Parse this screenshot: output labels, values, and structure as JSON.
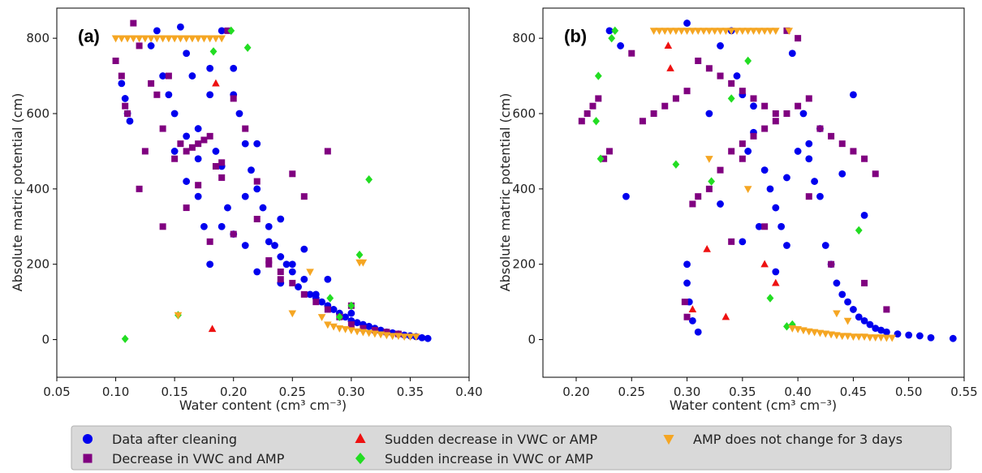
{
  "chart_data": [
    {
      "type": "scatter",
      "panel_label": "(a)",
      "xlabel": "Water content (cm³ cm⁻³)",
      "ylabel": "Absolute matric potential (cm)",
      "xlim": [
        0.05,
        0.4
      ],
      "ylim": [
        -100,
        880
      ],
      "xticks": [
        0.05,
        0.1,
        0.15,
        0.2,
        0.25,
        0.3,
        0.35,
        0.4
      ],
      "xtick_labels": [
        "0.05",
        "0.10",
        "0.15",
        "0.20",
        "0.25",
        "0.30",
        "0.35",
        "0.40"
      ],
      "yticks": [
        0,
        200,
        400,
        600,
        800
      ],
      "ytick_labels": [
        "0",
        "200",
        "400",
        "600",
        "800"
      ],
      "grid": false,
      "series": [
        {
          "name": "Data after cleaning",
          "marker": "circle",
          "color": "#0000ee",
          "x": [
            0.105,
            0.108,
            0.11,
            0.112,
            0.13,
            0.135,
            0.14,
            0.145,
            0.15,
            0.15,
            0.155,
            0.16,
            0.16,
            0.165,
            0.17,
            0.17,
            0.175,
            0.18,
            0.18,
            0.185,
            0.19,
            0.19,
            0.195,
            0.2,
            0.2,
            0.205,
            0.21,
            0.21,
            0.215,
            0.22,
            0.22,
            0.225,
            0.23,
            0.235,
            0.24,
            0.24,
            0.245,
            0.25,
            0.255,
            0.26,
            0.265,
            0.27,
            0.275,
            0.28,
            0.285,
            0.29,
            0.295,
            0.3,
            0.305,
            0.31,
            0.315,
            0.32,
            0.325,
            0.33,
            0.335,
            0.34,
            0.345,
            0.35,
            0.355,
            0.36,
            0.365,
            0.16,
            0.17,
            0.19,
            0.21,
            0.23,
            0.25,
            0.27,
            0.2,
            0.18,
            0.22,
            0.26,
            0.28,
            0.3,
            0.24
          ],
          "y": [
            680,
            640,
            600,
            580,
            780,
            820,
            700,
            650,
            600,
            500,
            830,
            760,
            420,
            700,
            380,
            560,
            300,
            650,
            200,
            500,
            820,
            460,
            350,
            720,
            280,
            600,
            520,
            250,
            450,
            400,
            180,
            350,
            300,
            250,
            220,
            150,
            200,
            180,
            140,
            160,
            120,
            110,
            100,
            90,
            80,
            70,
            60,
            50,
            45,
            40,
            35,
            30,
            25,
            20,
            18,
            15,
            12,
            10,
            8,
            5,
            3,
            540,
            480,
            300,
            380,
            260,
            200,
            120,
            650,
            720,
            520,
            240,
            160,
            70,
            320
          ]
        },
        {
          "name": "Decrease in VWC and AMP",
          "marker": "square",
          "color": "#800080",
          "x": [
            0.1,
            0.105,
            0.108,
            0.11,
            0.115,
            0.12,
            0.125,
            0.13,
            0.135,
            0.14,
            0.145,
            0.15,
            0.155,
            0.16,
            0.165,
            0.17,
            0.175,
            0.18,
            0.185,
            0.19,
            0.195,
            0.2,
            0.21,
            0.22,
            0.23,
            0.24,
            0.25,
            0.26,
            0.27,
            0.28,
            0.29,
            0.3,
            0.31,
            0.32,
            0.33,
            0.34,
            0.12,
            0.14,
            0.16,
            0.18,
            0.2,
            0.22,
            0.24,
            0.26,
            0.28,
            0.3,
            0.17,
            0.19,
            0.23,
            0.25
          ],
          "y": [
            740,
            700,
            620,
            600,
            840,
            780,
            500,
            680,
            650,
            560,
            700,
            480,
            520,
            500,
            510,
            520,
            530,
            540,
            460,
            430,
            820,
            640,
            560,
            420,
            200,
            180,
            150,
            120,
            100,
            80,
            60,
            40,
            30,
            25,
            20,
            15,
            400,
            300,
            350,
            260,
            280,
            320,
            160,
            380,
            500,
            90,
            410,
            470,
            210,
            440
          ]
        },
        {
          "name": "Sudden decrease in VWC or AMP",
          "marker": "triangle-up",
          "color": "#ee1111",
          "x": [
            0.182,
            0.185
          ],
          "y": [
            28,
            680
          ]
        },
        {
          "name": "Sudden increase in VWC or AMP",
          "marker": "diamond",
          "color": "#22dd22",
          "x": [
            0.108,
            0.153,
            0.183,
            0.198,
            0.212,
            0.307,
            0.315,
            0.282,
            0.29,
            0.3
          ],
          "y": [
            2,
            65,
            765,
            820,
            775,
            225,
            425,
            110,
            60,
            90
          ]
        },
        {
          "name": "AMP does not change for 3 days",
          "marker": "triangle-down",
          "color": "#f5a623",
          "x": [
            0.1,
            0.105,
            0.11,
            0.115,
            0.12,
            0.125,
            0.13,
            0.135,
            0.14,
            0.145,
            0.15,
            0.155,
            0.16,
            0.165,
            0.17,
            0.175,
            0.18,
            0.185,
            0.19,
            0.153,
            0.307,
            0.31,
            0.28,
            0.285,
            0.29,
            0.295,
            0.3,
            0.305,
            0.31,
            0.315,
            0.32,
            0.325,
            0.33,
            0.335,
            0.34,
            0.345,
            0.35,
            0.355,
            0.275,
            0.265,
            0.25
          ],
          "y": [
            800,
            800,
            800,
            800,
            800,
            800,
            800,
            800,
            800,
            800,
            800,
            800,
            800,
            800,
            800,
            800,
            800,
            800,
            800,
            65,
            205,
            205,
            40,
            35,
            30,
            28,
            25,
            22,
            20,
            18,
            16,
            14,
            12,
            10,
            10,
            8,
            8,
            8,
            60,
            180,
            70
          ]
        }
      ]
    },
    {
      "type": "scatter",
      "panel_label": "(b)",
      "xlabel": "Water content (cm³ cm⁻³)",
      "ylabel": "Absolute matric potential (cm)",
      "xlim": [
        0.17,
        0.55
      ],
      "ylim": [
        -100,
        880
      ],
      "xticks": [
        0.2,
        0.25,
        0.3,
        0.35,
        0.4,
        0.45,
        0.5,
        0.55
      ],
      "xtick_labels": [
        "0.20",
        "0.25",
        "0.30",
        "0.35",
        "0.40",
        "0.45",
        "0.50",
        "0.55"
      ],
      "yticks": [
        0,
        200,
        400,
        600,
        800
      ],
      "ytick_labels": [
        "0",
        "200",
        "400",
        "600",
        "800"
      ],
      "grid": false,
      "series": [
        {
          "name": "Data after cleaning",
          "marker": "circle",
          "color": "#0000ee",
          "x": [
            0.23,
            0.24,
            0.245,
            0.3,
            0.3,
            0.302,
            0.305,
            0.31,
            0.32,
            0.33,
            0.34,
            0.345,
            0.35,
            0.355,
            0.36,
            0.365,
            0.37,
            0.375,
            0.38,
            0.385,
            0.39,
            0.395,
            0.4,
            0.405,
            0.41,
            0.415,
            0.42,
            0.425,
            0.43,
            0.435,
            0.44,
            0.445,
            0.45,
            0.455,
            0.46,
            0.465,
            0.47,
            0.475,
            0.48,
            0.49,
            0.5,
            0.51,
            0.52,
            0.54,
            0.3,
            0.33,
            0.36,
            0.39,
            0.42,
            0.45,
            0.41,
            0.38,
            0.35,
            0.46,
            0.44
          ],
          "y": [
            820,
            780,
            380,
            200,
            150,
            100,
            50,
            20,
            600,
            780,
            820,
            700,
            650,
            500,
            550,
            300,
            450,
            400,
            350,
            300,
            250,
            760,
            500,
            600,
            480,
            420,
            380,
            250,
            200,
            150,
            120,
            100,
            80,
            60,
            50,
            40,
            30,
            25,
            20,
            15,
            12,
            10,
            5,
            3,
            840,
            360,
            620,
            430,
            560,
            650,
            520,
            180,
            260,
            330,
            440
          ]
        },
        {
          "name": "Decrease in VWC and AMP",
          "marker": "square",
          "color": "#800080",
          "x": [
            0.205,
            0.21,
            0.215,
            0.22,
            0.225,
            0.23,
            0.25,
            0.26,
            0.27,
            0.28,
            0.29,
            0.3,
            0.305,
            0.31,
            0.32,
            0.33,
            0.34,
            0.35,
            0.36,
            0.37,
            0.38,
            0.39,
            0.4,
            0.41,
            0.42,
            0.43,
            0.44,
            0.45,
            0.46,
            0.47,
            0.48,
            0.31,
            0.32,
            0.33,
            0.34,
            0.35,
            0.36,
            0.37,
            0.38,
            0.39,
            0.4,
            0.3,
            0.298,
            0.34,
            0.37,
            0.43,
            0.46,
            0.41,
            0.35,
            0.33
          ],
          "y": [
            580,
            600,
            620,
            640,
            480,
            500,
            760,
            580,
            600,
            620,
            640,
            660,
            360,
            380,
            400,
            450,
            500,
            520,
            540,
            560,
            580,
            600,
            620,
            640,
            560,
            540,
            520,
            500,
            480,
            440,
            80,
            740,
            720,
            700,
            680,
            660,
            640,
            620,
            600,
            820,
            800,
            60,
            100,
            260,
            300,
            200,
            150,
            380,
            480,
            700
          ]
        },
        {
          "name": "Sudden decrease in VWC or AMP",
          "marker": "triangle-up",
          "color": "#ee1111",
          "x": [
            0.283,
            0.285,
            0.305,
            0.318,
            0.335,
            0.37,
            0.38
          ],
          "y": [
            780,
            720,
            80,
            240,
            60,
            200,
            150
          ]
        },
        {
          "name": "Sudden increase in VWC or AMP",
          "marker": "diamond",
          "color": "#22dd22",
          "x": [
            0.218,
            0.22,
            0.222,
            0.232,
            0.235,
            0.29,
            0.322,
            0.34,
            0.355,
            0.375,
            0.39,
            0.395,
            0.455
          ],
          "y": [
            580,
            700,
            480,
            800,
            820,
            465,
            420,
            640,
            740,
            110,
            35,
            40,
            290
          ]
        },
        {
          "name": "AMP does not change for 3 days",
          "marker": "triangle-down",
          "color": "#f5a623",
          "x": [
            0.27,
            0.275,
            0.28,
            0.285,
            0.29,
            0.295,
            0.3,
            0.305,
            0.31,
            0.315,
            0.32,
            0.325,
            0.33,
            0.335,
            0.34,
            0.345,
            0.35,
            0.355,
            0.36,
            0.365,
            0.37,
            0.375,
            0.38,
            0.392,
            0.32,
            0.355,
            0.395,
            0.4,
            0.405,
            0.41,
            0.415,
            0.42,
            0.425,
            0.43,
            0.435,
            0.44,
            0.445,
            0.45,
            0.455,
            0.46,
            0.465,
            0.47,
            0.475,
            0.48,
            0.485,
            0.435,
            0.445
          ],
          "y": [
            820,
            820,
            820,
            820,
            820,
            820,
            820,
            820,
            820,
            820,
            820,
            820,
            820,
            820,
            820,
            820,
            820,
            820,
            820,
            820,
            820,
            820,
            820,
            820,
            480,
            400,
            30,
            28,
            25,
            22,
            20,
            18,
            16,
            14,
            12,
            10,
            10,
            8,
            8,
            8,
            6,
            6,
            6,
            5,
            5,
            70,
            50
          ]
        }
      ]
    }
  ],
  "legend": {
    "placement": "bottom-center",
    "entries": [
      {
        "label": "Data after cleaning",
        "marker": "circle",
        "color": "#0000ee"
      },
      {
        "label": "Sudden decrease in VWC or AMP",
        "marker": "triangle-up",
        "color": "#ee1111"
      },
      {
        "label": "AMP does not change for 3 days",
        "marker": "triangle-down",
        "color": "#f5a623"
      },
      {
        "label": "Decrease in VWC and AMP",
        "marker": "square",
        "color": "#800080"
      },
      {
        "label": "Sudden increase in VWC or AMP",
        "marker": "diamond",
        "color": "#22dd22"
      }
    ]
  }
}
